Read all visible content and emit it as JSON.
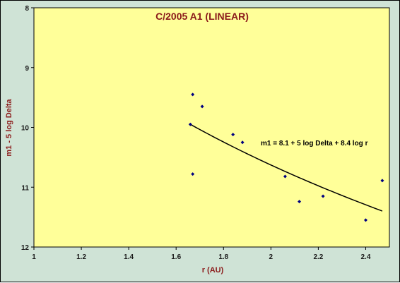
{
  "chart_data": {
    "type": "scatter",
    "title": "C/2005 A1 (LINEAR)",
    "xlabel": "r (AU)",
    "ylabel": "m1 - 5 log Delta",
    "xlim": [
      1,
      2.5
    ],
    "ylim": [
      8,
      12
    ],
    "y_inverted": true,
    "grid": false,
    "x_ticks": [
      "1",
      "1.2",
      "1.4",
      "1.6",
      "1.8",
      "2",
      "2.2",
      "2.4"
    ],
    "y_ticks": [
      "8",
      "9",
      "10",
      "11",
      "12"
    ],
    "points": [
      {
        "x": 1.66,
        "y": 9.95
      },
      {
        "x": 1.67,
        "y": 9.45
      },
      {
        "x": 1.67,
        "y": 10.78
      },
      {
        "x": 1.71,
        "y": 9.65
      },
      {
        "x": 1.84,
        "y": 10.12
      },
      {
        "x": 1.88,
        "y": 10.25
      },
      {
        "x": 2.06,
        "y": 10.82
      },
      {
        "x": 2.12,
        "y": 11.24
      },
      {
        "x": 2.22,
        "y": 11.15
      },
      {
        "x": 2.4,
        "y": 11.55
      },
      {
        "x": 2.47,
        "y": 10.89
      }
    ],
    "fit": {
      "label": "m1 = 8.1 + 5 log Delta + 8.4 log r",
      "H": 8.1,
      "K": 8.4,
      "x_range": [
        1.66,
        2.47
      ]
    },
    "colors": {
      "outer_bg": "#cfe3d6",
      "plot_bg": "#ffff99",
      "marker": "#000080",
      "fit_line": "#000000",
      "title": "#8b1a1a",
      "axis_title": "#8b1a1a"
    }
  }
}
